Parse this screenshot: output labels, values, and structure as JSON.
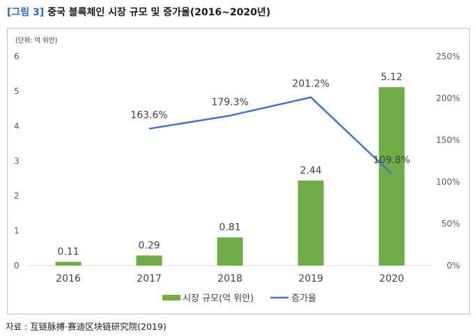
{
  "figure": {
    "number": "[그림 3]",
    "title": "중국 블록체인 시장 규모 및 증가율(2016~2020년)",
    "source": "자료 : 互链脉搏·赛迪区块链研究院(2019)"
  },
  "chart_data": {
    "type": "bar",
    "unit_label": "(단위: 억 위안)",
    "categories": [
      "2016",
      "2017",
      "2018",
      "2019",
      "2020"
    ],
    "series": [
      {
        "name": "시장 규모(억 위안)",
        "kind": "bar",
        "axis": "left",
        "color": "#70ad47",
        "values": [
          0.11,
          0.29,
          0.81,
          2.44,
          5.12
        ],
        "labels": [
          "0.11",
          "0.29",
          "0.81",
          "2.44",
          "5.12"
        ]
      },
      {
        "name": "증가율",
        "kind": "line",
        "axis": "right",
        "color": "#4472c4",
        "values": [
          null,
          163.6,
          179.3,
          201.2,
          109.8
        ],
        "labels": [
          null,
          "163.6%",
          "179.3%",
          "201.2%",
          "109.8%"
        ]
      }
    ],
    "y_left": {
      "ylim": [
        0,
        6
      ],
      "ticks": [
        "0",
        "1",
        "2",
        "3",
        "4",
        "5",
        "6"
      ]
    },
    "y_right": {
      "ylim": [
        0,
        250
      ],
      "ticks": [
        "0%",
        "50%",
        "100%",
        "150%",
        "200%",
        "250%"
      ]
    },
    "grid": false,
    "legend": "bottom"
  }
}
